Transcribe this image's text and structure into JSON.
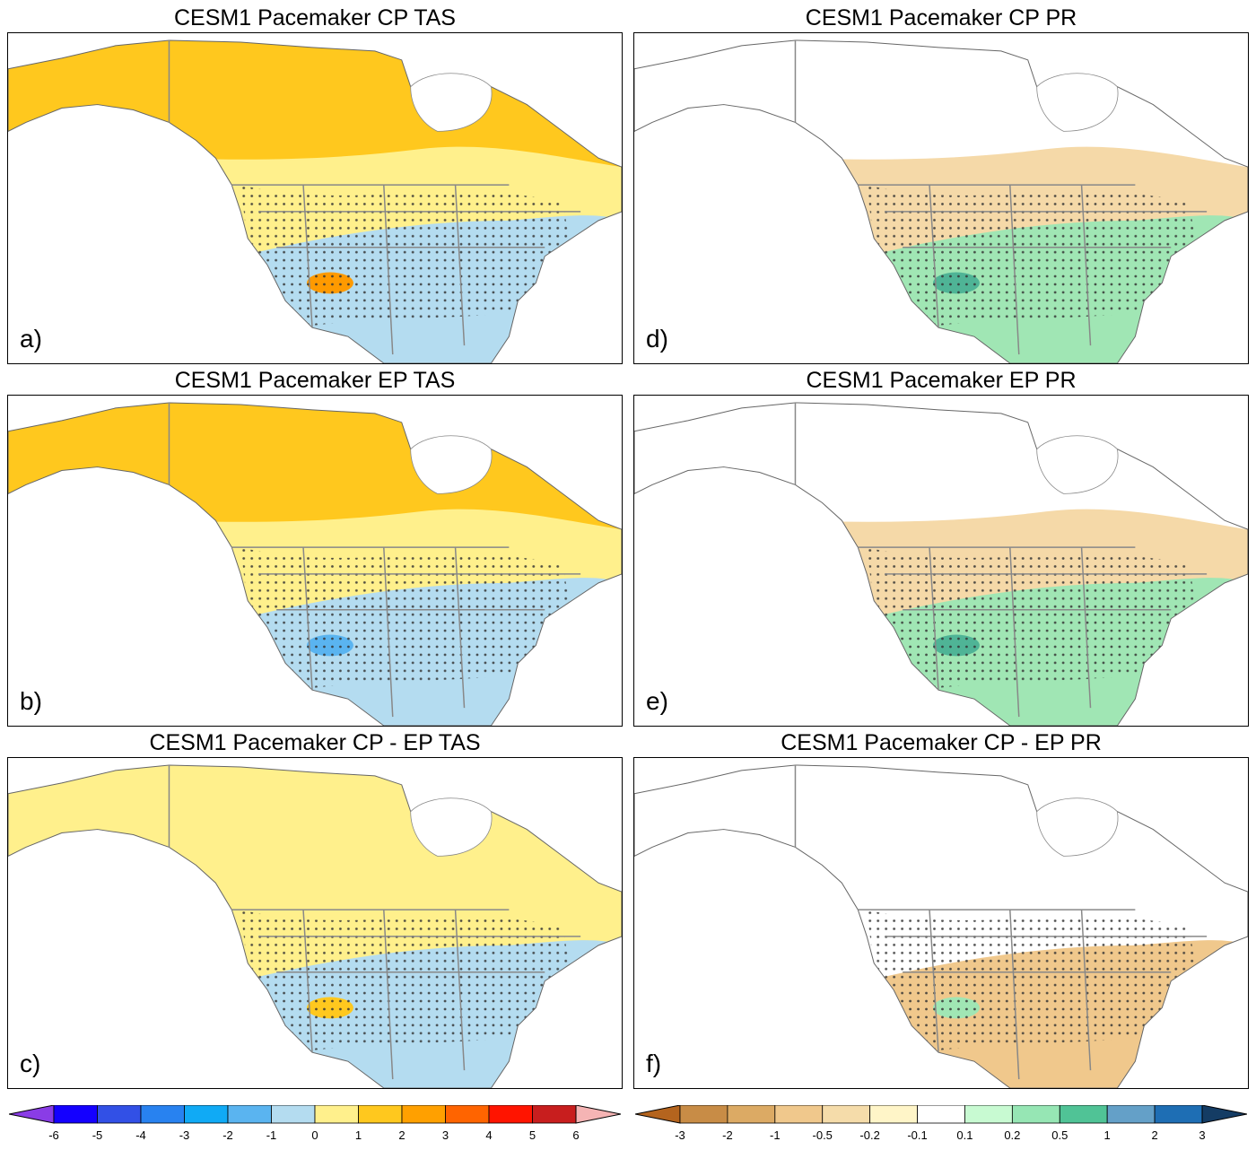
{
  "panels": [
    {
      "id": "a",
      "title": "CESM1 Pacemaker CP TAS",
      "label": "a)",
      "variable": "TAS",
      "fills": {
        "north": "#ffc81e",
        "mid": "#fff08c",
        "south": "#b4dcf0",
        "accent": "#ff9a00"
      }
    },
    {
      "id": "b",
      "title": "CESM1 Pacemaker EP TAS",
      "label": "b)",
      "variable": "TAS",
      "fills": {
        "north": "#ffc81e",
        "mid": "#fff08c",
        "south": "#b4dcf0",
        "accent": "#5ab4f0"
      }
    },
    {
      "id": "c",
      "title": "CESM1 Pacemaker CP - EP TAS",
      "label": "c)",
      "variable": "TAS",
      "fills": {
        "north": "#fff08c",
        "mid": "#fff08c",
        "south": "#b4dcf0",
        "accent": "#ffc81e"
      }
    },
    {
      "id": "d",
      "title": "CESM1 Pacemaker CP PR",
      "label": "d)",
      "variable": "PR",
      "fills": {
        "north": "#ffffff",
        "mid": "#f5d9a8",
        "south": "#a0e6b4",
        "accent": "#4fb496"
      }
    },
    {
      "id": "e",
      "title": "CESM1 Pacemaker EP PR",
      "label": "e)",
      "variable": "PR",
      "fills": {
        "north": "#ffffff",
        "mid": "#f5d9a8",
        "south": "#a0e6b4",
        "accent": "#4fb496"
      }
    },
    {
      "id": "f",
      "title": "CESM1 Pacemaker CP - EP PR",
      "label": "f)",
      "variable": "PR",
      "fills": {
        "north": "#ffffff",
        "mid": "#ffffff",
        "south": "#f0c88c",
        "accent": "#a0e6b4"
      }
    }
  ],
  "colorbars": {
    "tas": {
      "ticks": [
        "-6",
        "-5",
        "-4",
        "-3",
        "-2",
        "-1",
        "0",
        "1",
        "2",
        "3",
        "4",
        "5",
        "6"
      ],
      "colors": [
        "#8a3ce6",
        "#1400ff",
        "#3250e6",
        "#2882f0",
        "#10aaf5",
        "#5ab4f0",
        "#b4dcf0",
        "#fff08c",
        "#ffc81e",
        "#ffa000",
        "#ff6400",
        "#ff1400",
        "#c81e1e",
        "#f5b4b4"
      ]
    },
    "pr": {
      "ticks": [
        "-3",
        "-2",
        "-1",
        "-0.5",
        "-0.2",
        "-0.1",
        "0.1",
        "0.2",
        "0.5",
        "1",
        "2",
        "3"
      ],
      "colors": [
        "#b4641e",
        "#c88c46",
        "#dcaa64",
        "#f0c88c",
        "#f5dcaa",
        "#fff5c8",
        "#ffffff",
        "#c8fad2",
        "#96e6b4",
        "#50c396",
        "#64a0c8",
        "#1e6eb4",
        "#143c64"
      ]
    }
  }
}
